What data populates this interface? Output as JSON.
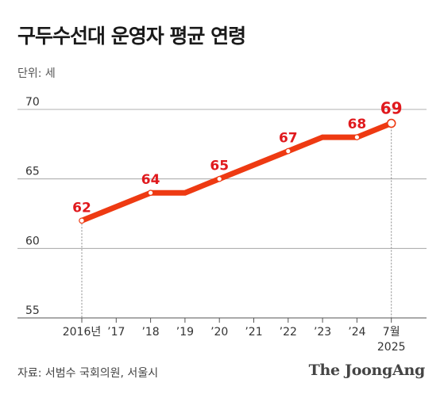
{
  "title": "구두수선대 운영자 평균 연령",
  "unit_label": "단위: 세",
  "source": "자료: 서범수 국회의원, 서울시",
  "logo": "The JoongAng",
  "colors": {
    "line": "#ee3a12",
    "label": "#e0191d",
    "grid": "#999999",
    "axis_text": "#333333"
  },
  "chart_data": {
    "type": "line",
    "title": "구두수선대 운영자 평균 연령",
    "ylabel": "단위: 세",
    "xlabel": "",
    "ylim": [
      55,
      70
    ],
    "yticks": [
      55,
      60,
      65,
      70
    ],
    "categories": [
      "2016년",
      "’17",
      "’18",
      "’19",
      "’20",
      "’21",
      "’22",
      "’23",
      "’24",
      "7월"
    ],
    "category_sublabels": [
      "",
      "",
      "",
      "",
      "",
      "",
      "",
      "",
      "",
      "2025"
    ],
    "values": [
      62,
      63,
      64,
      64,
      65,
      66,
      67,
      68,
      68,
      69
    ],
    "labeled_points": [
      {
        "index": 0,
        "label": "62"
      },
      {
        "index": 2,
        "label": "64"
      },
      {
        "index": 4,
        "label": "65"
      },
      {
        "index": 6,
        "label": "67"
      },
      {
        "index": 8,
        "label": "68"
      },
      {
        "index": 9,
        "label": "69"
      }
    ],
    "grid": true,
    "legend": "none"
  }
}
